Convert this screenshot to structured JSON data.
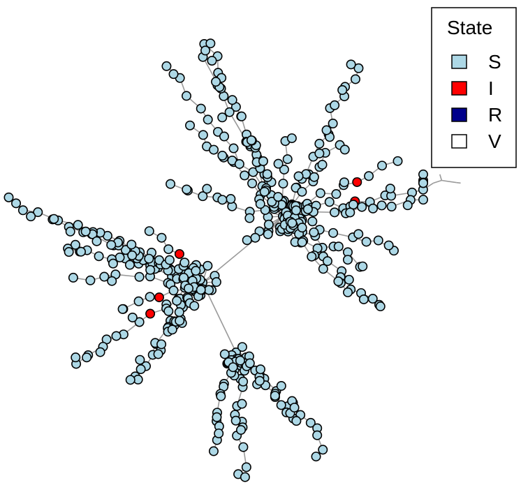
{
  "legend": {
    "title": "State",
    "entries": [
      {
        "label": "S",
        "color": "#add8e6"
      },
      {
        "label": "I",
        "color": "#ff0000"
      },
      {
        "label": "R",
        "color": "#00008b"
      },
      {
        "label": "V",
        "color": "#ffffff"
      }
    ]
  },
  "state_colors": {
    "S": "#add8e6",
    "I": "#ff0000",
    "R": "#00008b",
    "V": "#ffffff"
  },
  "edge_color": "#9a9a9a",
  "infected_count": 5
}
